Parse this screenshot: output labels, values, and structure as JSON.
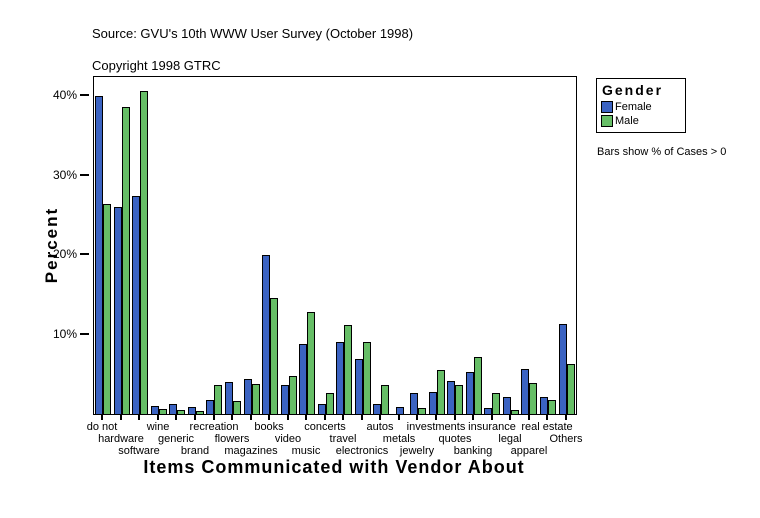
{
  "header": {
    "source_line": "Source: GVU's 10th WWW User Survey (October 1998)",
    "copyright_line": "Copyright 1998 GTRC"
  },
  "legend": {
    "title": "Gender",
    "items": [
      {
        "label": "Female",
        "color": "#3B63C2"
      },
      {
        "label": "Male",
        "color": "#66BE66"
      }
    ],
    "note": "Bars show % of Cases > 0"
  },
  "chart_data": {
    "type": "bar",
    "title": "",
    "xlabel": "Items Communicated with Vendor About",
    "ylabel": "Percent",
    "ylim": [
      0,
      42.4
    ],
    "yticks": [
      10,
      20,
      30,
      40
    ],
    "ytick_suffix": "%",
    "grid": false,
    "legend_position": "top-right",
    "categories": [
      "do not",
      "hardware",
      "software",
      "wine",
      "generic",
      "brand",
      "recreation",
      "flowers",
      "magazines",
      "books",
      "video",
      "music",
      "concerts",
      "travel",
      "electronics",
      "autos",
      "metals",
      "jewelry",
      "investments",
      "quotes",
      "banking",
      "insurance",
      "legal",
      "apparel",
      "real estate",
      "Others"
    ],
    "series": [
      {
        "name": "Female",
        "color": "#3B63C2",
        "values": [
          40.0,
          26.0,
          27.4,
          1.0,
          1.3,
          0.9,
          1.7,
          4.0,
          4.4,
          20.0,
          3.7,
          8.8,
          1.3,
          9.0,
          6.9,
          1.3,
          0.9,
          2.6,
          2.8,
          4.2,
          5.3,
          0.8,
          2.2,
          5.7,
          2.2,
          11.3
        ]
      },
      {
        "name": "Male",
        "color": "#66BE66",
        "values": [
          26.4,
          38.6,
          40.6,
          0.6,
          0.5,
          0.4,
          3.6,
          1.6,
          3.8,
          14.6,
          4.8,
          12.8,
          2.7,
          11.2,
          9.1,
          3.6,
          0,
          0.7,
          5.5,
          3.6,
          7.2,
          2.6,
          0.5,
          3.9,
          1.8,
          6.3
        ]
      }
    ]
  }
}
